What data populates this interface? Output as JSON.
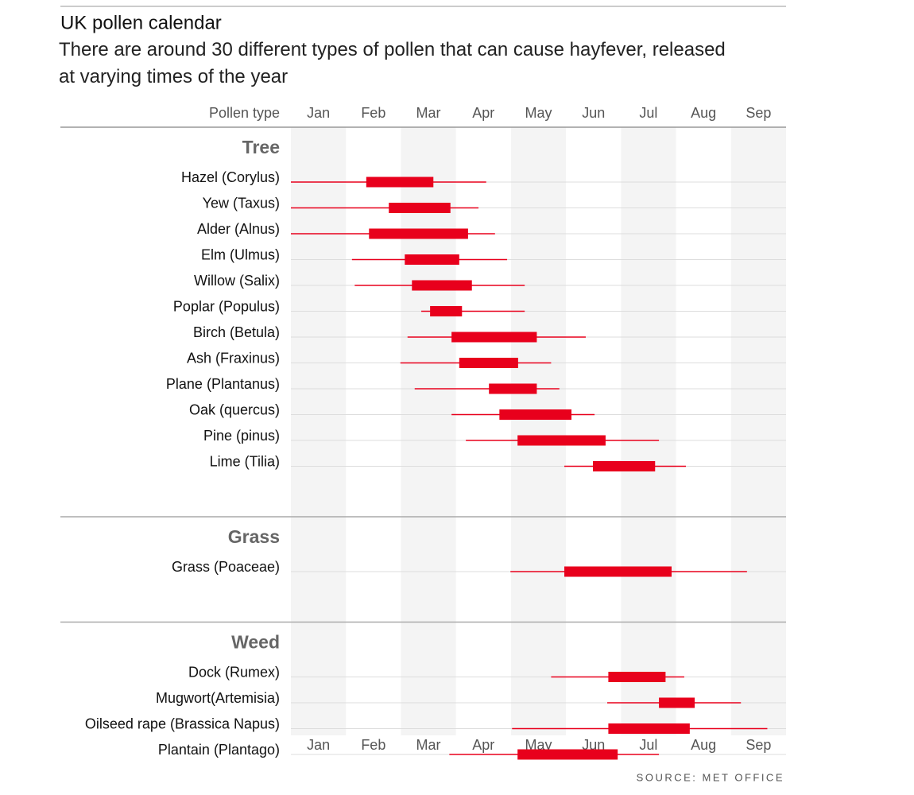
{
  "chart_data": {
    "type": "range",
    "title": "UK pollen calendar",
    "subtitle": "There are around 30 different types of pollen that can cause hayfever, released at varying times of the year",
    "row_header": "Pollen type",
    "source": "SOURCE: MET OFFICE",
    "xlim": [
      0,
      9
    ],
    "xticks": [
      {
        "value": 0.5,
        "label": "Jan"
      },
      {
        "value": 1.5,
        "label": "Feb"
      },
      {
        "value": 2.5,
        "label": "Mar"
      },
      {
        "value": 3.5,
        "label": "Apr"
      },
      {
        "value": 4.5,
        "label": "May"
      },
      {
        "value": 5.5,
        "label": "Jun"
      },
      {
        "value": 6.5,
        "label": "Jul"
      },
      {
        "value": 7.5,
        "label": "Aug"
      },
      {
        "value": 8.5,
        "label": "Sep"
      }
    ],
    "color": "#e8001c",
    "groups": [
      {
        "name": "Tree",
        "rows": [
          {
            "label": "Hazel (Corylus)",
            "range": [
              0,
              3.55
            ],
            "peak": [
              1.37,
              2.59
            ]
          },
          {
            "label": "Yew (Taxus)",
            "range": [
              0,
              3.41
            ],
            "peak": [
              1.78,
              2.9
            ]
          },
          {
            "label": "Alder (Alnus)",
            "range": [
              0,
              3.71
            ],
            "peak": [
              1.42,
              3.22
            ]
          },
          {
            "label": "Elm (Ulmus)",
            "range": [
              1.11,
              3.93
            ],
            "peak": [
              2.07,
              3.06
            ]
          },
          {
            "label": "Willow (Salix)",
            "range": [
              1.16,
              4.25
            ],
            "peak": [
              2.2,
              3.29
            ]
          },
          {
            "label": "Poplar (Populus)",
            "range": [
              2.37,
              4.25
            ],
            "peak": [
              2.53,
              3.11
            ]
          },
          {
            "label": "Birch (Betula)",
            "range": [
              2.12,
              5.36
            ],
            "peak": [
              2.92,
              4.47
            ]
          },
          {
            "label": "Ash (Fraxinus)",
            "range": [
              1.99,
              4.73
            ],
            "peak": [
              3.06,
              4.13
            ]
          },
          {
            "label": "Plane (Plantanus)",
            "range": [
              2.25,
              4.88
            ],
            "peak": [
              3.6,
              4.47
            ]
          },
          {
            "label": "Oak (quercus)",
            "range": [
              2.92,
              5.52
            ],
            "peak": [
              3.79,
              5.1
            ]
          },
          {
            "label": "Pine (pinus)",
            "range": [
              3.18,
              6.69
            ],
            "peak": [
              4.12,
              5.72
            ]
          },
          {
            "label": "Lime (Tilia)",
            "range": [
              4.97,
              7.18
            ],
            "peak": [
              5.49,
              6.62
            ]
          }
        ]
      },
      {
        "name": "Grass",
        "rows": [
          {
            "label": "Grass (Poaceae)",
            "range": [
              3.99,
              8.29
            ],
            "peak": [
              4.97,
              6.92
            ]
          }
        ]
      },
      {
        "name": "Weed",
        "rows": [
          {
            "label": "Dock (Rumex)",
            "range": [
              4.73,
              7.15
            ],
            "peak": [
              5.77,
              6.81
            ]
          },
          {
            "label": "Mugwort(Artemisia)",
            "range": [
              5.75,
              8.18
            ],
            "peak": [
              6.69,
              7.34
            ]
          },
          {
            "label": "Oilseed rape (Brassica Napus)",
            "range": [
              4.02,
              8.66
            ],
            "peak": [
              5.77,
              7.25
            ]
          },
          {
            "label": "Plantain (Plantago)",
            "range": [
              2.88,
              6.69
            ],
            "peak": [
              4.12,
              5.94
            ]
          }
        ]
      }
    ]
  }
}
